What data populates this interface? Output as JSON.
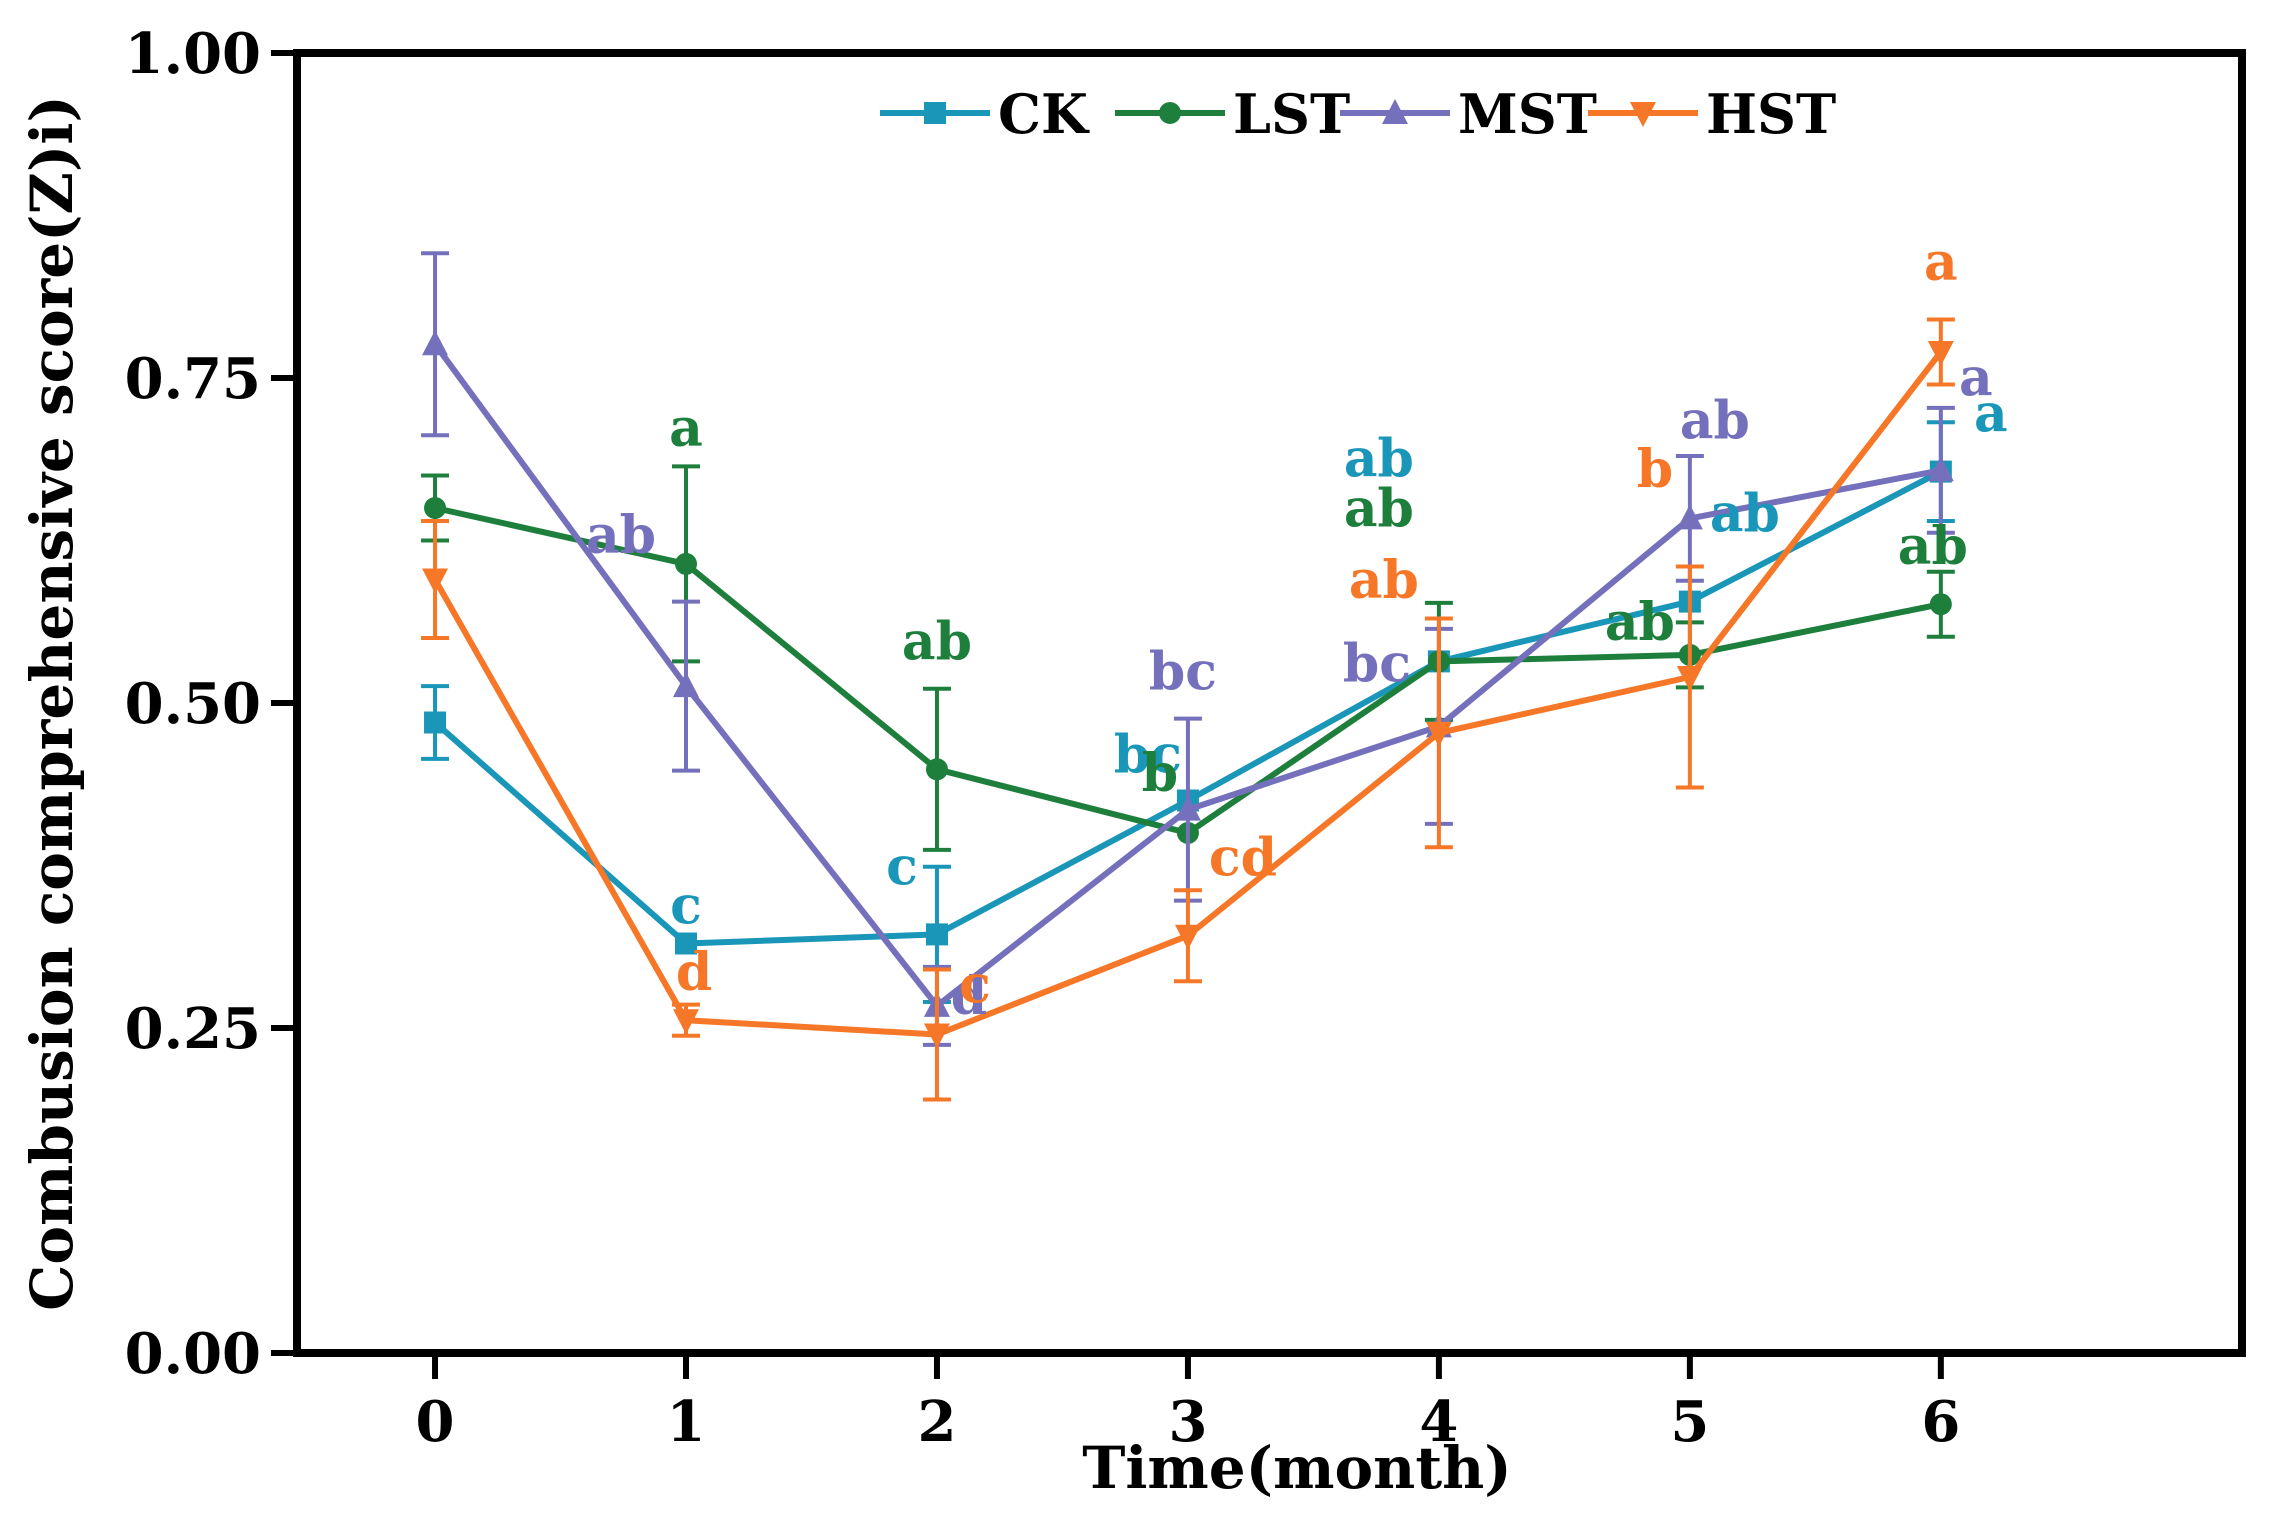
{
  "chart_data": {
    "type": "line",
    "title": "",
    "xlabel": "Time(month)",
    "ylabel": "Combusion comprehensive score(Z)i)",
    "x": [
      0,
      1,
      2,
      3,
      4,
      5,
      6
    ],
    "xlim": [
      -0.55,
      7.2
    ],
    "ylim": [
      0,
      1
    ],
    "yticks": [
      "0.00",
      "0.25",
      "0.50",
      "0.75",
      "1.00"
    ],
    "xticks": [
      "0",
      "1",
      "2",
      "3",
      "4",
      "5",
      "6"
    ],
    "grid": false,
    "legend_position": "top-center",
    "series": [
      {
        "name": "CK",
        "color": "#1a96b9",
        "marker": "square",
        "values": [
          0.485,
          0.315,
          0.322,
          0.425,
          0.532,
          0.578,
          0.678
        ],
        "errors": [
          0.028,
          0.0,
          0.052,
          0.0,
          0.0,
          0.0,
          0.038
        ],
        "letters": [
          "",
          "c",
          "c",
          "bc",
          "ab",
          "ab",
          "a"
        ]
      },
      {
        "name": "LST",
        "color": "#1e7f3d",
        "marker": "circle",
        "values": [
          0.65,
          0.607,
          0.449,
          0.4,
          0.532,
          0.537,
          0.576
        ],
        "errors": [
          0.025,
          0.075,
          0.062,
          0.0,
          0.045,
          0.025,
          0.025
        ],
        "letters": [
          "",
          "a",
          "ab",
          "b",
          "ab",
          "ab",
          "ab"
        ]
      },
      {
        "name": "MST",
        "color": "#7470bb",
        "marker": "triangle-up",
        "values": [
          0.776,
          0.513,
          0.267,
          0.418,
          0.482,
          0.642,
          0.679
        ],
        "errors": [
          0.07,
          0.065,
          0.03,
          0.07,
          0.075,
          0.048,
          0.048
        ],
        "letters": [
          "",
          "ab",
          "d",
          "bc",
          "bc",
          "ab",
          "a"
        ]
      },
      {
        "name": "HST",
        "color": "#f57727",
        "marker": "triangle-down",
        "values": [
          0.595,
          0.256,
          0.245,
          0.321,
          0.477,
          0.52,
          0.77
        ],
        "errors": [
          0.045,
          0.012,
          0.05,
          0.035,
          0.088,
          0.085,
          0.025
        ],
        "letters": [
          "",
          "d",
          "c",
          "cd",
          "ab",
          "b",
          "a"
        ]
      }
    ]
  }
}
